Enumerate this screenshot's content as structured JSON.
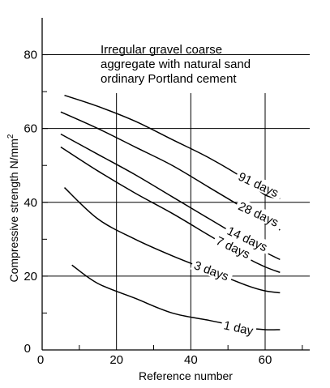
{
  "chart_data": {
    "type": "line",
    "title_lines": [
      "Irregular gravel coarse",
      "aggregate with natural sand",
      "ordinary Portland cement"
    ],
    "xlabel": "Reference number",
    "ylabel": "Compressive strength N/mm",
    "ylabel_superscript": "2",
    "xlim": [
      0,
      72
    ],
    "ylim": [
      0,
      90
    ],
    "x_ticks": [
      0,
      20,
      40,
      60
    ],
    "x_tick_labels": [
      "0",
      "20",
      "40",
      "60"
    ],
    "y_ticks": [
      0,
      20,
      40,
      60,
      80
    ],
    "y_tick_labels": [
      "0",
      "20",
      "40",
      "60",
      "80"
    ],
    "y_minor_ticks": [
      10,
      30,
      50,
      70
    ],
    "grid": true,
    "series": [
      {
        "name": "91 days",
        "x": [
          6,
          15,
          25,
          35,
          45,
          55,
          60,
          64
        ],
        "y": [
          69,
          66,
          62,
          57,
          52,
          46,
          42,
          41
        ]
      },
      {
        "name": "28 days",
        "x": [
          5,
          15,
          25,
          35,
          45,
          55,
          60,
          64
        ],
        "y": [
          64.5,
          60,
          55,
          50,
          44,
          38,
          35,
          32.5
        ]
      },
      {
        "name": "14 days",
        "x": [
          5,
          15,
          25,
          35,
          45,
          55,
          60,
          64
        ],
        "y": [
          58.5,
          53,
          47.5,
          41.5,
          35.5,
          29.5,
          26.5,
          24.5
        ]
      },
      {
        "name": "7 days",
        "x": [
          5,
          15,
          25,
          35,
          45,
          55,
          60,
          64
        ],
        "y": [
          55,
          48.5,
          42.5,
          37,
          31,
          25,
          22.5,
          21
        ]
      },
      {
        "name": "3 days",
        "x": [
          6,
          15,
          25,
          35,
          45,
          55,
          60,
          64
        ],
        "y": [
          44,
          35.5,
          30,
          25.5,
          21.5,
          17.5,
          16,
          15.5
        ]
      },
      {
        "name": "1 day",
        "x": [
          8,
          15,
          25,
          35,
          45,
          55,
          60,
          64
        ],
        "y": [
          23,
          18,
          14,
          10,
          8,
          6,
          5.5,
          5.5
        ]
      }
    ]
  }
}
